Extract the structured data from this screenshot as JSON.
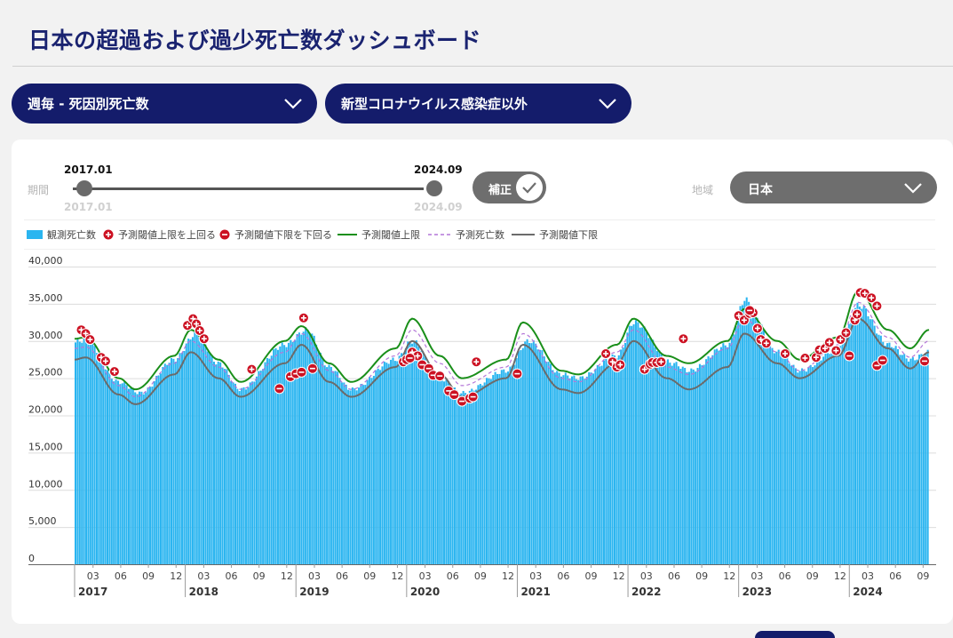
{
  "header": {
    "title": "日本の超過および過少死亡数ダッシュボード"
  },
  "filters": {
    "measure": "週毎 - 死因別死亡数",
    "cause": "新型コロナウイルス感染症以外"
  },
  "controls": {
    "period_label": "期間",
    "period_start": "2017.01",
    "period_end": "2024.09",
    "period_start_min": "2017.01",
    "period_end_max": "2024.09",
    "adjust_label": "補正",
    "adjust_enabled": true,
    "region_label": "地域",
    "region_value": "日本"
  },
  "legend": {
    "observed": "観測死亡数",
    "above": "予測閾値上限を上回る",
    "below": "予測閾値下限を下回る",
    "upper": "予測閾値上限",
    "expected": "予測死亡数",
    "lower": "予測閾値下限"
  },
  "colors": {
    "observed": "#2bb5f0",
    "upper": "#1a8f1a",
    "expected": "#b477d8",
    "lower": "#6b6b6b",
    "marker": "#cc1122",
    "navy": "#141c6b"
  },
  "chart_data": {
    "type": "bar",
    "ylim": [
      0,
      40000
    ],
    "yticks": [
      "40,000",
      "35,000",
      "30,000",
      "25,000",
      "20,000",
      "15,000",
      "10,000",
      "5,000",
      "0"
    ],
    "month_ticks": [
      "03",
      "06",
      "09",
      "12"
    ],
    "years": [
      "2017",
      "2018",
      "2019",
      "2020",
      "2021",
      "2022",
      "2023",
      "2024"
    ],
    "x_start": "2017-01",
    "x_end": "2024-09",
    "series_keypoints": {
      "observed": [
        [
          0,
          29800
        ],
        [
          0.1,
          30200
        ],
        [
          0.4,
          24500
        ],
        [
          0.6,
          23000
        ],
        [
          0.9,
          27500
        ],
        [
          1.1,
          31000
        ],
        [
          1.3,
          27000
        ],
        [
          1.5,
          23500
        ],
        [
          1.9,
          29500
        ],
        [
          2.1,
          31500
        ],
        [
          2.3,
          26500
        ],
        [
          2.5,
          23500
        ],
        [
          2.9,
          27500
        ],
        [
          3.05,
          30000
        ],
        [
          3.3,
          25000
        ],
        [
          3.5,
          23000
        ],
        [
          3.9,
          26000
        ],
        [
          4.1,
          30000
        ],
        [
          4.4,
          25500
        ],
        [
          4.55,
          25000
        ],
        [
          4.9,
          28000
        ],
        [
          5.05,
          32500
        ],
        [
          5.4,
          27000
        ],
        [
          5.55,
          26000
        ],
        [
          5.9,
          29500
        ],
        [
          6.05,
          35500
        ],
        [
          6.35,
          28500
        ],
        [
          6.55,
          26000
        ],
        [
          6.9,
          29000
        ],
        [
          7.08,
          34800
        ],
        [
          7.35,
          29500
        ],
        [
          7.55,
          27500
        ],
        [
          7.72,
          28500
        ]
      ],
      "upper": [
        [
          0,
          30300
        ],
        [
          0.1,
          30500
        ],
        [
          0.4,
          25000
        ],
        [
          0.55,
          23500
        ],
        [
          0.9,
          28000
        ],
        [
          1.05,
          31500
        ],
        [
          1.3,
          27500
        ],
        [
          1.5,
          24500
        ],
        [
          1.9,
          30000
        ],
        [
          2.05,
          32000
        ],
        [
          2.3,
          27000
        ],
        [
          2.5,
          24500
        ],
        [
          2.9,
          29000
        ],
        [
          3.05,
          33000
        ],
        [
          3.3,
          28000
        ],
        [
          3.5,
          25000
        ],
        [
          3.9,
          27500
        ],
        [
          4.05,
          32500
        ],
        [
          4.4,
          26000
        ],
        [
          4.55,
          25500
        ],
        [
          4.9,
          29500
        ],
        [
          5.05,
          33000
        ],
        [
          5.35,
          28000
        ],
        [
          5.55,
          27000
        ],
        [
          5.9,
          30000
        ],
        [
          6.05,
          34300
        ],
        [
          6.35,
          30000
        ],
        [
          6.55,
          27500
        ],
        [
          6.9,
          30500
        ],
        [
          7.08,
          36700
        ],
        [
          7.35,
          31500
        ],
        [
          7.55,
          29000
        ],
        [
          7.72,
          31500
        ]
      ],
      "expected": [
        [
          0,
          29000
        ],
        [
          0.1,
          29200
        ],
        [
          0.4,
          24000
        ],
        [
          0.55,
          22500
        ],
        [
          0.9,
          27000
        ],
        [
          1.05,
          30000
        ],
        [
          1.3,
          26500
        ],
        [
          1.5,
          23500
        ],
        [
          1.9,
          28500
        ],
        [
          2.05,
          31000
        ],
        [
          2.3,
          26000
        ],
        [
          2.5,
          23500
        ],
        [
          2.9,
          28000
        ],
        [
          3.05,
          31500
        ],
        [
          3.3,
          27000
        ],
        [
          3.5,
          24000
        ],
        [
          3.9,
          26500
        ],
        [
          4.05,
          31000
        ],
        [
          4.4,
          25000
        ],
        [
          4.55,
          24500
        ],
        [
          4.9,
          28500
        ],
        [
          5.05,
          31500
        ],
        [
          5.35,
          26500
        ],
        [
          5.55,
          25500
        ],
        [
          5.9,
          29000
        ],
        [
          6.05,
          33000
        ],
        [
          6.35,
          28500
        ],
        [
          6.55,
          26000
        ],
        [
          6.9,
          29500
        ],
        [
          7.08,
          35200
        ],
        [
          7.35,
          30500
        ],
        [
          7.55,
          27800
        ],
        [
          7.72,
          30000
        ]
      ],
      "lower": [
        [
          0,
          27500
        ],
        [
          0.1,
          27800
        ],
        [
          0.4,
          22800
        ],
        [
          0.55,
          21500
        ],
        [
          0.9,
          25500
        ],
        [
          1.05,
          28500
        ],
        [
          1.3,
          25000
        ],
        [
          1.5,
          22500
        ],
        [
          1.9,
          27000
        ],
        [
          2.05,
          29500
        ],
        [
          2.3,
          24500
        ],
        [
          2.5,
          22500
        ],
        [
          2.9,
          26500
        ],
        [
          3.05,
          30000
        ],
        [
          3.3,
          25500
        ],
        [
          3.5,
          22500
        ],
        [
          3.9,
          25000
        ],
        [
          4.05,
          29500
        ],
        [
          4.4,
          23500
        ],
        [
          4.55,
          23000
        ],
        [
          4.9,
          27000
        ],
        [
          5.05,
          30000
        ],
        [
          5.35,
          25000
        ],
        [
          5.55,
          23500
        ],
        [
          5.9,
          26500
        ],
        [
          6.05,
          31000
        ],
        [
          6.35,
          27000
        ],
        [
          6.55,
          25000
        ],
        [
          6.9,
          28000
        ],
        [
          7.08,
          33000
        ],
        [
          7.35,
          29000
        ],
        [
          7.55,
          26300
        ],
        [
          7.72,
          28500
        ]
      ]
    },
    "markers_above": [
      [
        0.06,
        31500
      ],
      [
        0.1,
        31000
      ],
      [
        0.14,
        30200
      ],
      [
        0.24,
        27800
      ],
      [
        0.28,
        27300
      ],
      [
        0.36,
        25900
      ],
      [
        1.02,
        32100
      ],
      [
        1.07,
        33000
      ],
      [
        1.1,
        32300
      ],
      [
        1.13,
        31400
      ],
      [
        1.17,
        30300
      ],
      [
        1.6,
        26200
      ],
      [
        2.07,
        33100
      ],
      [
        2.97,
        27200
      ],
      [
        3.05,
        28500
      ],
      [
        3.1,
        28000
      ],
      [
        3.63,
        27200
      ],
      [
        4.8,
        28300
      ],
      [
        4.86,
        27200
      ],
      [
        4.9,
        26500
      ],
      [
        4.93,
        26800
      ],
      [
        5.15,
        26200
      ],
      [
        5.2,
        26900
      ],
      [
        5.22,
        27100
      ],
      [
        5.26,
        27100
      ],
      [
        5.3,
        27200
      ],
      [
        5.5,
        30300
      ],
      [
        6.0,
        33400
      ],
      [
        6.05,
        32800
      ],
      [
        6.1,
        33700
      ],
      [
        6.13,
        33800
      ],
      [
        6.17,
        31700
      ],
      [
        6.2,
        30200
      ],
      [
        6.25,
        29700
      ],
      [
        6.42,
        28300
      ],
      [
        6.6,
        27700
      ],
      [
        6.7,
        27800
      ],
      [
        6.73,
        28800
      ],
      [
        6.78,
        29000
      ],
      [
        6.82,
        29800
      ],
      [
        6.88,
        28700
      ],
      [
        6.92,
        30200
      ],
      [
        6.97,
        31100
      ],
      [
        7.05,
        32800
      ],
      [
        7.07,
        33600
      ],
      [
        7.1,
        36500
      ],
      [
        7.14,
        36400
      ],
      [
        7.2,
        35800
      ],
      [
        7.25,
        34700
      ]
    ],
    "markers_below": [
      [
        1.85,
        23600
      ],
      [
        1.95,
        25200
      ],
      [
        2.0,
        25600
      ],
      [
        2.05,
        25800
      ],
      [
        2.15,
        26300
      ],
      [
        3.0,
        27500
      ],
      [
        3.03,
        27700
      ],
      [
        3.14,
        26800
      ],
      [
        3.2,
        26300
      ],
      [
        3.24,
        25400
      ],
      [
        3.3,
        25300
      ],
      [
        3.38,
        23300
      ],
      [
        3.43,
        22800
      ],
      [
        3.5,
        21900
      ],
      [
        3.57,
        22300
      ],
      [
        3.6,
        22500
      ],
      [
        4.0,
        25600
      ],
      [
        6.1,
        34100
      ],
      [
        7.0,
        28000
      ],
      [
        7.25,
        26700
      ],
      [
        7.3,
        27400
      ],
      [
        7.68,
        27300
      ]
    ]
  }
}
